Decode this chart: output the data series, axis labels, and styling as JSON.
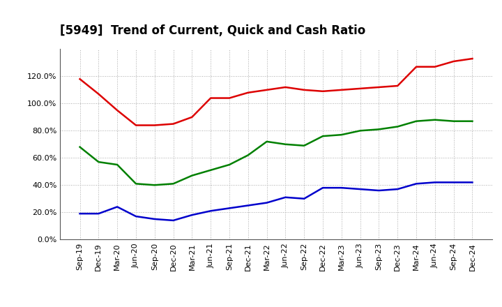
{
  "title": "[5949]  Trend of Current, Quick and Cash Ratio",
  "x_labels": [
    "Sep-19",
    "Dec-19",
    "Mar-20",
    "Jun-20",
    "Sep-20",
    "Dec-20",
    "Mar-21",
    "Jun-21",
    "Sep-21",
    "Dec-21",
    "Mar-22",
    "Jun-22",
    "Sep-22",
    "Dec-22",
    "Mar-23",
    "Jun-23",
    "Sep-23",
    "Dec-23",
    "Mar-24",
    "Jun-24",
    "Sep-24",
    "Dec-24"
  ],
  "current_ratio": [
    118,
    107,
    95,
    84,
    84,
    85,
    90,
    104,
    104,
    108,
    110,
    112,
    110,
    109,
    110,
    111,
    112,
    113,
    127,
    127,
    131,
    133
  ],
  "quick_ratio": [
    68,
    57,
    55,
    41,
    40,
    41,
    47,
    51,
    55,
    62,
    72,
    70,
    69,
    76,
    77,
    80,
    81,
    83,
    87,
    88,
    87,
    87
  ],
  "cash_ratio": [
    19,
    19,
    24,
    17,
    15,
    14,
    18,
    21,
    23,
    25,
    27,
    31,
    30,
    38,
    38,
    37,
    36,
    37,
    41,
    42,
    42,
    42
  ],
  "current_color": "#dd0000",
  "quick_color": "#008000",
  "cash_color": "#0000cc",
  "line_width": 1.8,
  "ylim": [
    0,
    140
  ],
  "yticks": [
    0,
    20,
    40,
    60,
    80,
    100,
    120
  ],
  "background_color": "#ffffff",
  "grid_color": "#aaaaaa",
  "title_fontsize": 12,
  "tick_fontsize": 8,
  "legend_fontsize": 9
}
